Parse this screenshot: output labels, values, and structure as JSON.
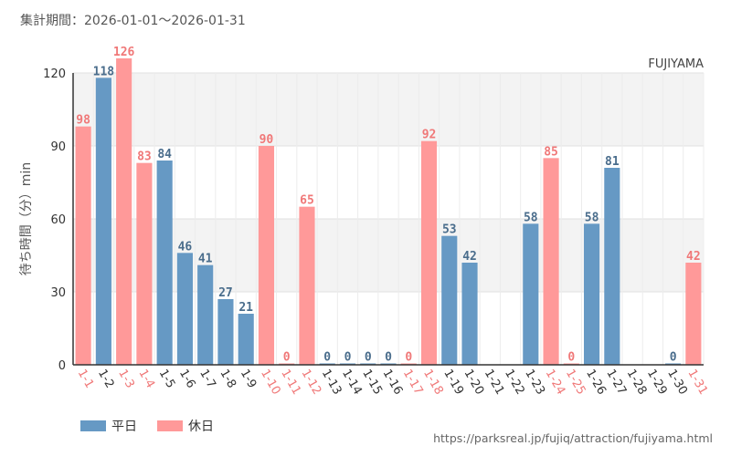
{
  "header": {
    "period_text": "集計期間：2026-01-01～2026-01-31"
  },
  "chart_data": {
    "type": "bar",
    "title": "FUJIYAMA",
    "ylabel": "待ち時間（分）min",
    "xlabel": "",
    "ylim": [
      0,
      120
    ],
    "yticks": [
      0,
      30,
      60,
      90,
      120
    ],
    "categories": [
      "1-1",
      "1-2",
      "1-3",
      "1-4",
      "1-5",
      "1-6",
      "1-7",
      "1-8",
      "1-9",
      "1-10",
      "1-11",
      "1-12",
      "1-13",
      "1-14",
      "1-15",
      "1-16",
      "1-17",
      "1-18",
      "1-19",
      "1-20",
      "1-21",
      "1-22",
      "1-23",
      "1-24",
      "1-25",
      "1-26",
      "1-27",
      "1-28",
      "1-29",
      "1-30",
      "1-31"
    ],
    "values": [
      98,
      118,
      126,
      83,
      84,
      46,
      41,
      27,
      21,
      90,
      0,
      65,
      0,
      0,
      0,
      0,
      0,
      92,
      53,
      42,
      null,
      null,
      58,
      85,
      0,
      58,
      81,
      null,
      null,
      0,
      42
    ],
    "day_types": [
      "holiday",
      "weekday",
      "holiday",
      "holiday",
      "weekday",
      "weekday",
      "weekday",
      "weekday",
      "weekday",
      "holiday",
      "holiday",
      "holiday",
      "weekday",
      "weekday",
      "weekday",
      "weekday",
      "holiday",
      "holiday",
      "weekday",
      "weekday",
      "weekday",
      "weekday",
      "weekday",
      "holiday",
      "holiday",
      "weekday",
      "weekday",
      "weekday",
      "weekday",
      "weekday",
      "holiday"
    ],
    "series": [
      {
        "name": "平日",
        "key": "weekday",
        "color": "#6699c4"
      },
      {
        "name": "休日",
        "key": "holiday",
        "color": "#ff9999"
      }
    ],
    "label_colors": {
      "weekday": "#4a6d8c",
      "holiday": "#f07878"
    },
    "grid": true
  },
  "legend": {
    "weekday_label": "平日",
    "holiday_label": "休日"
  },
  "footer": {
    "source_url": "https://parksreal.jp/fujiq/attraction/fujiyama.html"
  }
}
